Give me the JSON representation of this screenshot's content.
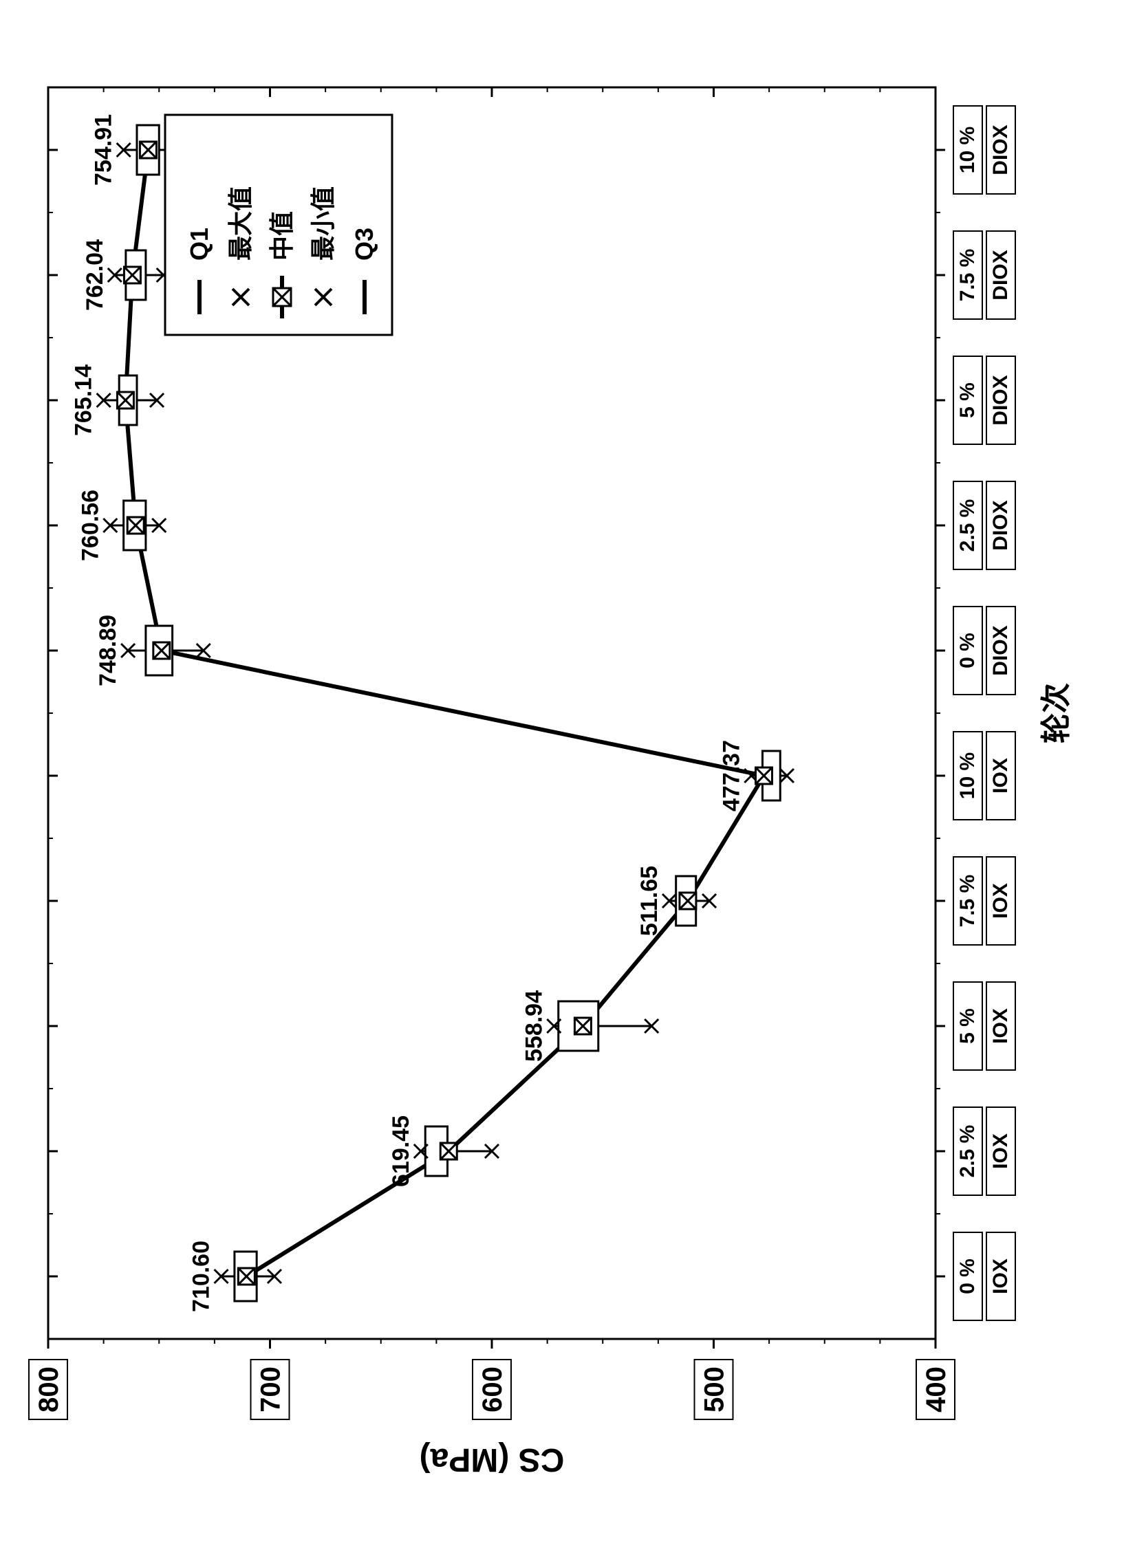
{
  "chart": {
    "type": "line-boxplot",
    "orientation": "rotated-90-ccw",
    "background_color": "#ffffff",
    "plot_border_color": "#000000",
    "plot_border_width": 3,
    "grid_color": "#000000",
    "axis_font_family": "Arial",
    "axis_color": "#000000",
    "y_axis": {
      "label": "CS (MPa)",
      "label_fontsize": 48,
      "label_fontweight": 700,
      "ylim": [
        400,
        800
      ],
      "tick_step": 100,
      "tick_fontsize": 40,
      "tick_fontweight": 700,
      "tick_box_border": "#000000"
    },
    "x_axis": {
      "label": "轮次",
      "label_fontsize": 44,
      "label_fontweight": 700,
      "tick_fontsize": 30,
      "tick_fontweight": 700,
      "categories": [
        {
          "top": "0 %",
          "bottom": "IOX"
        },
        {
          "top": "2.5 %",
          "bottom": "IOX"
        },
        {
          "top": "5 %",
          "bottom": "IOX"
        },
        {
          "top": "7.5 %",
          "bottom": "IOX"
        },
        {
          "top": "10 %",
          "bottom": "IOX"
        },
        {
          "top": "0 %",
          "bottom": "DIOX"
        },
        {
          "top": "2.5 %",
          "bottom": "DIOX"
        },
        {
          "top": "5 %",
          "bottom": "DIOX"
        },
        {
          "top": "7.5 %",
          "bottom": "DIOX"
        },
        {
          "top": "10 %",
          "bottom": "DIOX"
        }
      ]
    },
    "series": {
      "line_color": "#000000",
      "line_width": 6,
      "marker_stroke": "#000000",
      "marker_fill": "#ffffff",
      "box_fill": "#ffffff",
      "box_stroke": "#000000",
      "box_stroke_width": 3,
      "points": [
        {
          "median": 710.6,
          "max": 722,
          "min": 698,
          "q1": 706,
          "q3": 716,
          "label": "710.60"
        },
        {
          "median": 619.45,
          "max": 632,
          "min": 600,
          "q1": 620,
          "q3": 630,
          "label": "619.45"
        },
        {
          "median": 558.94,
          "max": 572,
          "min": 528,
          "q1": 552,
          "q3": 570,
          "label": "558.94"
        },
        {
          "median": 511.65,
          "max": 520,
          "min": 502,
          "q1": 508,
          "q3": 517,
          "label": "511.65"
        },
        {
          "median": 477.37,
          "max": 483,
          "min": 467,
          "q1": 470,
          "q3": 478,
          "label": "477.37"
        },
        {
          "median": 748.89,
          "max": 764,
          "min": 730,
          "q1": 744,
          "q3": 756,
          "label": "748.89"
        },
        {
          "median": 760.56,
          "max": 772,
          "min": 750,
          "q1": 756,
          "q3": 766,
          "label": "760.56"
        },
        {
          "median": 765.14,
          "max": 775,
          "min": 751,
          "q1": 760,
          "q3": 768,
          "label": "765.14"
        },
        {
          "median": 762.04,
          "max": 770,
          "min": 748,
          "q1": 756,
          "q3": 765,
          "label": "762.04"
        },
        {
          "median": 754.91,
          "max": 766,
          "min": 744,
          "q1": 750,
          "q3": 760,
          "label": "754.91"
        }
      ],
      "data_label_fontsize": 34,
      "data_label_fontweight": 700
    },
    "legend": {
      "position": "inside-top-right",
      "border_color": "#000000",
      "background": "#ffffff",
      "fontsize": 36,
      "items": [
        {
          "symbol": "dash",
          "label": "Q1"
        },
        {
          "symbol": "x",
          "label": "最大值"
        },
        {
          "symbol": "box-line",
          "label": "中值"
        },
        {
          "symbol": "x",
          "label": "最小值"
        },
        {
          "symbol": "dash",
          "label": "Q3"
        }
      ]
    }
  }
}
